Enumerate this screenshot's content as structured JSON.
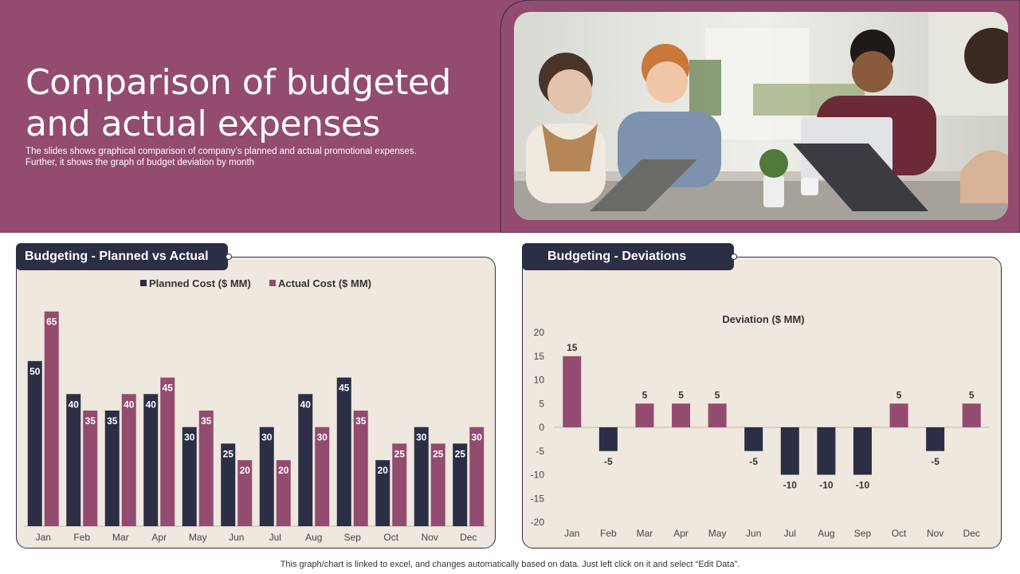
{
  "header": {
    "title": "Comparison of budgeted and actual expenses",
    "subtitle": "The slides shows graphical comparison of company’s planned and actual promotional expenses. Further, it shows the graph of budget deviation by month",
    "brand_color": "#944b70",
    "dark_color": "#2b2e45",
    "panel_bg": "#efe8de"
  },
  "photo": {
    "description_icon": "team-meeting-photo"
  },
  "panels": {
    "left_label": "Budgeting - Planned vs Actual",
    "right_label": "Budgeting - Deviations"
  },
  "footer": {
    "note": "This graph/chart is linked to excel,  and changes automatically based on data. Just left click on it and select “Edit Data”."
  },
  "chart_data": [
    {
      "type": "bar",
      "title": "",
      "legend": "top-center",
      "categories": [
        "Jan",
        "Feb",
        "Mar",
        "Apr",
        "May",
        "Jun",
        "Jul",
        "Aug",
        "Sep",
        "Oct",
        "Nov",
        "Dec"
      ],
      "series": [
        {
          "name": "Planned Cost ($ MM)",
          "color": "#2b2e45",
          "values": [
            50,
            40,
            35,
            40,
            30,
            25,
            30,
            40,
            45,
            20,
            30,
            25
          ]
        },
        {
          "name": "Actual Cost ($ MM)",
          "color": "#944b70",
          "values": [
            65,
            35,
            40,
            45,
            35,
            20,
            20,
            30,
            35,
            25,
            25,
            30
          ]
        }
      ],
      "ylim": [
        0,
        70
      ],
      "grid": false,
      "data_labels": true
    },
    {
      "type": "bar",
      "title": "Deviation ($ MM)",
      "categories": [
        "Jan",
        "Feb",
        "Mar",
        "Apr",
        "May",
        "Jun",
        "Jul",
        "Aug",
        "Sep",
        "Oct",
        "Nov",
        "Dec"
      ],
      "series": [
        {
          "name": "",
          "values": [
            15,
            -5,
            5,
            5,
            5,
            -5,
            -10,
            -10,
            -10,
            5,
            -5,
            5
          ]
        }
      ],
      "positive_color": "#944b70",
      "negative_color": "#2b2e45",
      "ylim": [
        -20,
        20
      ],
      "yticks": [
        20,
        15,
        10,
        5,
        0,
        -5,
        -10,
        -15,
        -20
      ],
      "grid": false,
      "data_labels": true
    }
  ]
}
